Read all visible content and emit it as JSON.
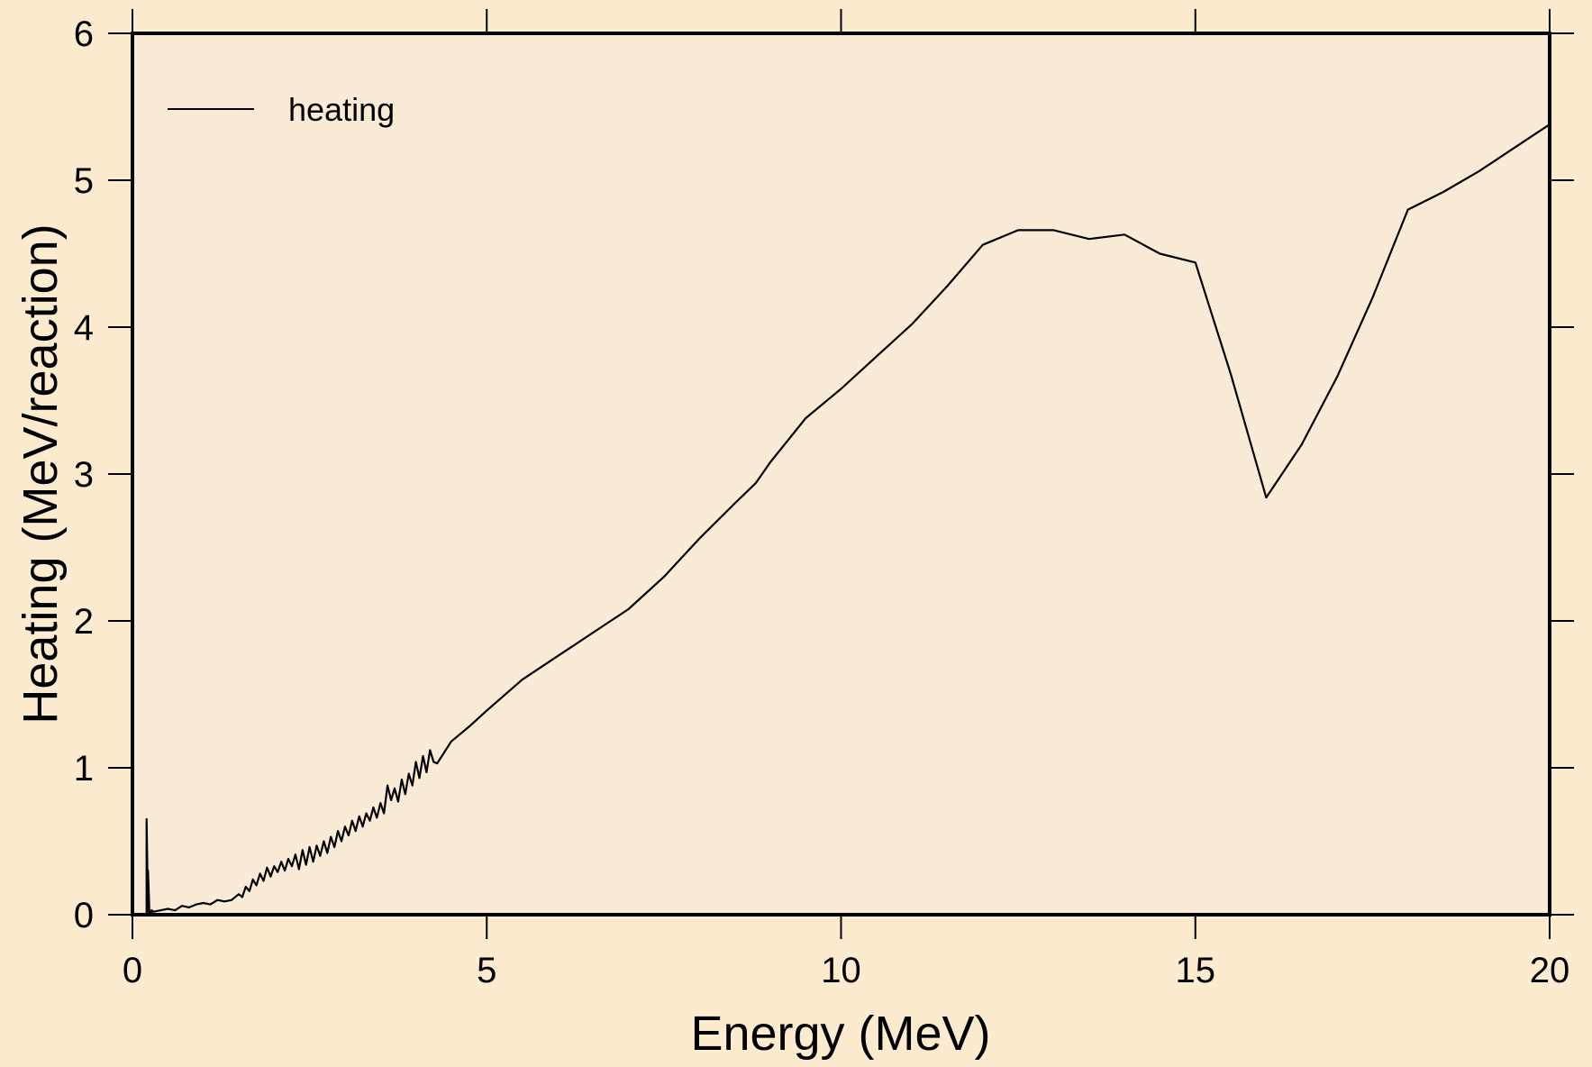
{
  "chart_data": {
    "type": "line",
    "title": "",
    "xlabel": "Energy (MeV)",
    "ylabel": "Heating (MeV/reaction)",
    "xlim": [
      0,
      20
    ],
    "ylim": [
      0,
      6
    ],
    "xticks": [
      "0",
      "5",
      "10",
      "15",
      "20"
    ],
    "yticks": [
      "0",
      "1",
      "2",
      "3",
      "4",
      "5",
      "6"
    ],
    "grid": false,
    "legend": {
      "position": "top-left",
      "entries": [
        "heating"
      ]
    },
    "colors": {
      "page_background": "#fdebd0",
      "plot_background": "#faebd7",
      "line": "#000000"
    },
    "series": [
      {
        "name": "heating",
        "x": [
          0.0,
          0.2,
          0.2,
          0.22,
          0.22,
          0.24,
          0.24,
          0.27,
          0.27,
          0.3,
          0.4,
          0.5,
          0.6,
          0.7,
          0.8,
          0.9,
          1.0,
          1.1,
          1.2,
          1.3,
          1.4,
          1.5,
          1.55,
          1.6,
          1.65,
          1.7,
          1.75,
          1.8,
          1.85,
          1.9,
          1.95,
          2.0,
          2.05,
          2.1,
          2.15,
          2.2,
          2.25,
          2.3,
          2.35,
          2.4,
          2.45,
          2.5,
          2.55,
          2.6,
          2.65,
          2.7,
          2.75,
          2.8,
          2.85,
          2.9,
          2.95,
          3.0,
          3.05,
          3.1,
          3.15,
          3.2,
          3.25,
          3.3,
          3.35,
          3.4,
          3.45,
          3.5,
          3.55,
          3.6,
          3.65,
          3.7,
          3.75,
          3.8,
          3.85,
          3.9,
          3.95,
          4.0,
          4.05,
          4.1,
          4.15,
          4.2,
          4.25,
          4.3,
          4.5,
          4.75,
          5.0,
          5.5,
          6.0,
          6.5,
          7.0,
          7.5,
          8.0,
          8.5,
          8.8,
          9.0,
          9.5,
          9.75,
          10.0,
          10.5,
          11.0,
          11.5,
          12.0,
          12.5,
          13.0,
          13.5,
          14.0,
          14.5,
          15.0,
          15.5,
          16.0,
          16.5,
          17.0,
          17.5,
          18.0,
          18.5,
          19.0,
          19.5,
          20.0
        ],
        "y": [
          0.0,
          0.0,
          0.65,
          0.02,
          0.3,
          0.01,
          0.02,
          0.01,
          0.03,
          0.02,
          0.03,
          0.04,
          0.03,
          0.06,
          0.05,
          0.07,
          0.08,
          0.07,
          0.1,
          0.09,
          0.1,
          0.14,
          0.12,
          0.19,
          0.16,
          0.24,
          0.2,
          0.28,
          0.23,
          0.32,
          0.26,
          0.33,
          0.29,
          0.36,
          0.3,
          0.38,
          0.33,
          0.41,
          0.31,
          0.44,
          0.34,
          0.46,
          0.36,
          0.47,
          0.4,
          0.5,
          0.42,
          0.53,
          0.46,
          0.57,
          0.5,
          0.6,
          0.54,
          0.64,
          0.57,
          0.67,
          0.6,
          0.69,
          0.64,
          0.73,
          0.66,
          0.76,
          0.69,
          0.88,
          0.78,
          0.86,
          0.77,
          0.92,
          0.82,
          0.96,
          0.88,
          1.04,
          0.93,
          1.08,
          0.97,
          1.12,
          1.04,
          1.03,
          1.18,
          1.28,
          1.39,
          1.6,
          1.76,
          1.92,
          2.08,
          2.3,
          2.56,
          2.8,
          2.94,
          3.08,
          3.38,
          3.48,
          3.58,
          3.8,
          4.02,
          4.28,
          4.56,
          4.66,
          4.66,
          4.6,
          4.63,
          4.5,
          4.44,
          3.68,
          2.84,
          3.2,
          3.66,
          4.2,
          4.8,
          4.92,
          5.06,
          5.22,
          5.38
        ]
      }
    ]
  }
}
